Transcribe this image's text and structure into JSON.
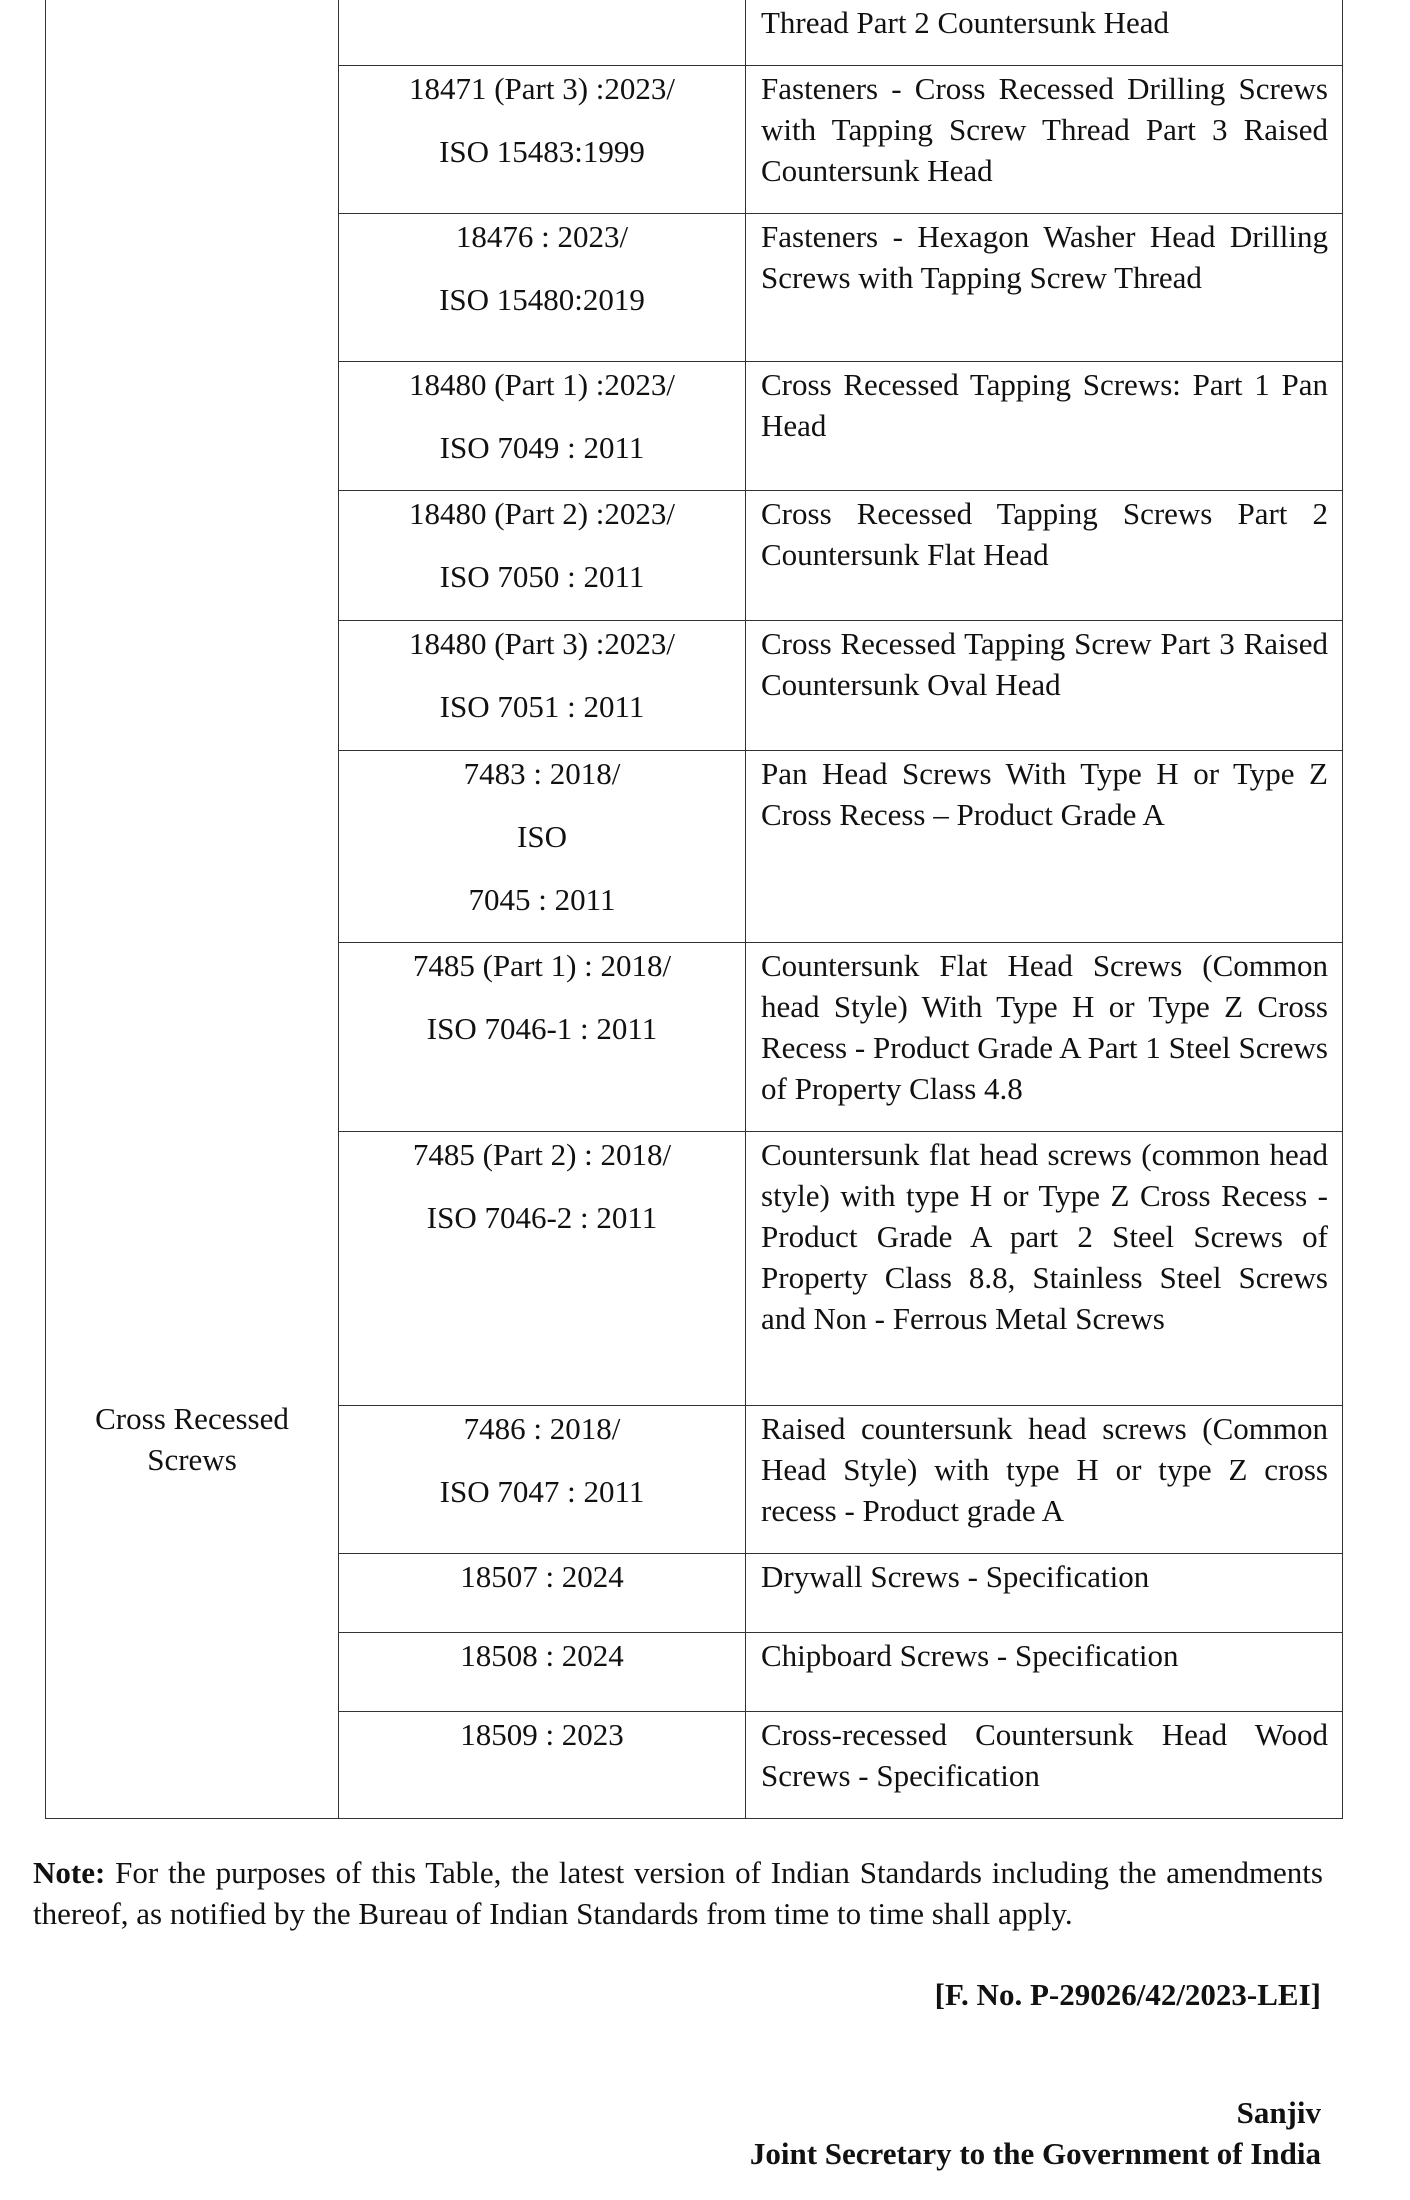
{
  "table": {
    "category": "Cross Recessed Screws",
    "rows": [
      {
        "code": [],
        "desc": "Thread Part 2 Countersunk Head"
      },
      {
        "code": [
          "18471 (Part 3) :2023/",
          "ISO 15483:1999"
        ],
        "desc": "Fasteners - Cross Recessed Drilling Screws with Tapping Screw Thread Part 3 Raised Countersunk Head"
      },
      {
        "code": [
          "18476 : 2023/",
          "ISO 15480:2019"
        ],
        "desc": "Fasteners - Hexagon Washer Head Drilling Screws with Tapping Screw Thread"
      },
      {
        "code": [
          "18480 (Part 1) :2023/",
          "ISO 7049 : 2011"
        ],
        "desc": "Cross Recessed Tapping Screws: Part 1 Pan Head"
      },
      {
        "code": [
          "18480 (Part 2) :2023/",
          "ISO 7050 : 2011"
        ],
        "desc": "Cross Recessed Tapping Screws Part 2 Countersunk Flat Head"
      },
      {
        "code": [
          "18480 (Part 3) :2023/",
          "ISO 7051 : 2011"
        ],
        "desc": "Cross Recessed Tapping Screw Part 3 Raised Countersunk Oval Head"
      },
      {
        "code": [
          "7483 : 2018/",
          "ISO",
          "7045 : 2011"
        ],
        "desc": "Pan Head Screws With Type H or Type Z Cross Recess – Product Grade A"
      },
      {
        "code": [
          "7485 (Part 1) : 2018/",
          "ISO 7046-1 : 2011"
        ],
        "desc": "Countersunk Flat Head Screws (Common head Style) With Type H or Type Z Cross Recess - Product Grade A Part 1 Steel Screws of Property Class 4.8"
      },
      {
        "code": [
          "7485 (Part 2) : 2018/",
          "ISO 7046-2 : 2011"
        ],
        "desc": "Countersunk flat head screws (common head style) with type H or Type Z Cross Recess - Product Grade A part 2 Steel Screws of Property Class 8.8, Stainless Steel Screws and Non - Ferrous Metal Screws"
      },
      {
        "code": [
          "7486 : 2018/",
          "ISO 7047 : 2011"
        ],
        "desc": "Raised countersunk head screws (Common Head Style) with type H or type Z cross recess - Product grade A"
      },
      {
        "code": [
          "18507 : 2024"
        ],
        "desc": "Drywall Screws - Specification"
      },
      {
        "code": [
          "18508 : 2024"
        ],
        "desc": "Chipboard Screws - Specification"
      },
      {
        "code": [
          "18509 : 2023"
        ],
        "desc": "Cross-recessed Countersunk Head Wood Screws - Specification"
      }
    ]
  },
  "note": {
    "label": "Note:",
    "text": " For the purposes of this Table, the latest version of Indian Standards including the amendments thereof, as notified by the Bureau of Indian Standards from time to time shall apply."
  },
  "file_ref": "[F. No. P-29026/42/2023-LEI]",
  "signatory": {
    "name": "Sanjiv",
    "title": "Joint Secretary to the Government of India"
  }
}
